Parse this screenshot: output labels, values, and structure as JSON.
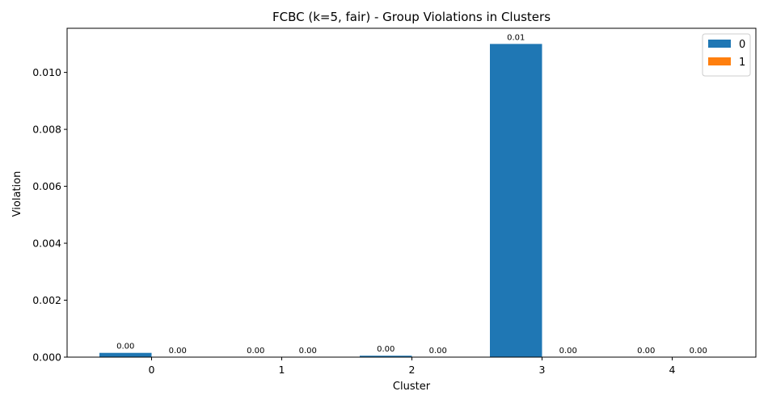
{
  "chart_data": {
    "type": "bar",
    "title": "FCBC (k=5, fair) - Group Violations in Clusters",
    "xlabel": "Cluster",
    "ylabel": "Violation",
    "categories": [
      "0",
      "1",
      "2",
      "3",
      "4"
    ],
    "series": [
      {
        "name": "0",
        "color": "#1f77b4",
        "values": [
          0.00015,
          0.0,
          5e-05,
          0.011,
          0.0
        ]
      },
      {
        "name": "1",
        "color": "#ff7f0e",
        "values": [
          0.0,
          0.0,
          0.0,
          0.0,
          0.0
        ]
      }
    ],
    "data_labels": [
      [
        "0.00",
        "0.00",
        "0.00",
        "0.01",
        "0.00"
      ],
      [
        "0.00",
        "0.00",
        "0.00",
        "0.00",
        "0.00"
      ]
    ],
    "ylim": [
      0,
      0.01155
    ],
    "yticks": [
      0.0,
      0.002,
      0.004,
      0.006,
      0.008,
      0.01
    ],
    "ytick_labels": [
      "0.000",
      "0.002",
      "0.004",
      "0.006",
      "0.008",
      "0.010"
    ],
    "grid": false,
    "legend_position": "top-right"
  }
}
